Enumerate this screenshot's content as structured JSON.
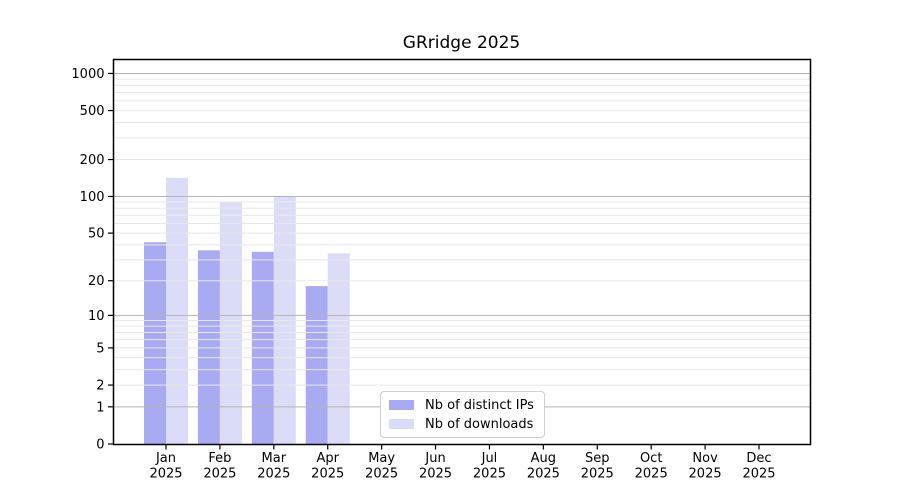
{
  "chart_data": {
    "type": "bar",
    "title": "GRridge 2025",
    "year_label": "2025",
    "categories": [
      "Jan",
      "Feb",
      "Mar",
      "Apr",
      "May",
      "Jun",
      "Jul",
      "Aug",
      "Sep",
      "Oct",
      "Nov",
      "Dec"
    ],
    "series": [
      {
        "name": "Nb of distinct IPs",
        "color": "#a9abf2",
        "values": [
          42,
          36,
          35,
          18,
          0,
          0,
          0,
          0,
          0,
          0,
          0,
          0
        ]
      },
      {
        "name": "Nb of downloads",
        "color": "#dbddf8",
        "values": [
          142,
          90,
          100,
          34,
          0,
          0,
          0,
          0,
          0,
          0,
          0,
          0
        ]
      }
    ],
    "ylabel": "",
    "xlabel": "",
    "y_scale": "log10(value+1)",
    "y_ticks": [
      0,
      1,
      2,
      5,
      10,
      20,
      50,
      100,
      200,
      500,
      1000
    ],
    "major_gridline_values": [
      1,
      10,
      100,
      1000
    ],
    "minor_gridline_base": [
      2,
      3,
      4,
      5,
      6,
      7,
      8,
      9
    ],
    "ylim_top": 1300,
    "grid": true,
    "legend_position": "lower center"
  },
  "style": {
    "axis_color": "#000000",
    "major_grid_color": "#b3b3b3",
    "minor_grid_color": "#e8e8e8",
    "text_color": "#000000",
    "background": "#ffffff"
  }
}
